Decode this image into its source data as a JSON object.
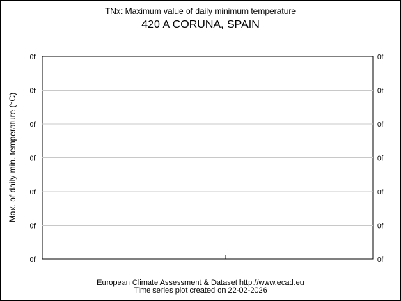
{
  "chart_data": {
    "type": "line",
    "title": "TNx: Maximum value of daily minimum temperature",
    "subtitle": "420 A CORUNA, SPAIN",
    "ylabel": "Max. of daily min. temperature (°C)",
    "xlabel": "",
    "y_tick_labels": [
      "0f",
      "0f",
      "0f",
      "0f",
      "0f",
      "0f",
      "0f"
    ],
    "grid": true,
    "series": []
  },
  "footer": {
    "source": "European Climate Assessment & Dataset  http://www.ecad.eu",
    "created": "Time series plot created on 22-02-2026"
  }
}
